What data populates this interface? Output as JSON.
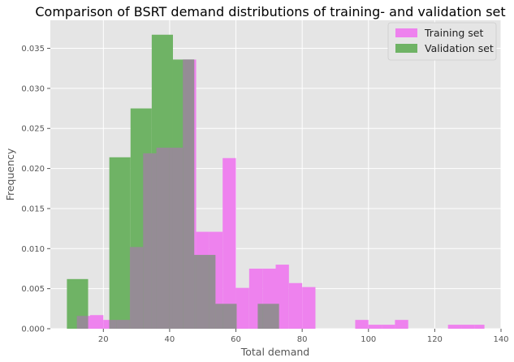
{
  "chart_data": {
    "type": "bar",
    "title": "Comparison of BSRT demand distributions of training- and validation set",
    "xlabel": "Total demand",
    "ylabel": "Frequency",
    "xlim": [
      4,
      140
    ],
    "ylim": [
      0,
      0.0385
    ],
    "xticks": [
      "20",
      "40",
      "60",
      "80",
      "100",
      "120",
      "140"
    ],
    "yticks": [
      "0.000",
      "0.005",
      "0.010",
      "0.015",
      "0.020",
      "0.025",
      "0.030",
      "0.035"
    ],
    "grid": true,
    "legend_position": "top-right",
    "colors": {
      "background": "#e5e5e5",
      "grid": "#ffffff",
      "training": "#ee82ee",
      "validation": "#6fb365",
      "overlap": "#958c95"
    },
    "series": [
      {
        "name": "Training set",
        "edges": [
          12,
          16,
          20,
          24,
          28,
          32,
          36,
          40,
          44,
          48,
          52,
          56,
          60,
          64,
          68,
          72,
          76,
          80,
          84,
          88,
          92,
          96,
          100,
          104,
          108,
          112,
          116,
          120,
          124,
          128,
          132,
          135
        ],
        "values": [
          0.0016,
          0.0017,
          0.0011,
          0.0011,
          0.0102,
          0.0219,
          0.0226,
          0.0226,
          0.0336,
          0.0121,
          0.0121,
          0.0213,
          0.0051,
          0.0075,
          0.0075,
          0.008,
          0.0057,
          0.0052,
          0.0,
          0.0,
          0.0,
          0.0011,
          0.0005,
          0.0005,
          0.0011,
          0.0,
          0.0,
          0.0,
          0.0005,
          0.0005,
          0.0005
        ]
      },
      {
        "name": "Validation set",
        "edges": [
          9,
          15.4,
          21.8,
          28.2,
          34.6,
          41,
          47.4,
          53.8,
          60.2,
          66.6,
          73,
          79.4
        ],
        "values": [
          0.0062,
          0.0,
          0.0214,
          0.0275,
          0.0367,
          0.0336,
          0.0092,
          0.0031,
          0.0,
          0.0031,
          0.0
        ]
      }
    ]
  }
}
